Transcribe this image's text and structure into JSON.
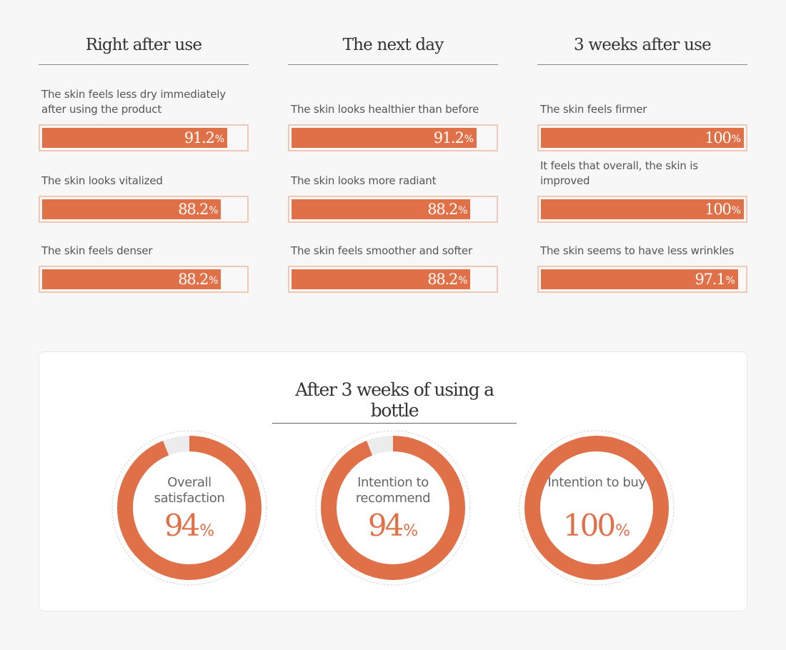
{
  "colors": {
    "accent": "#e07048",
    "track": "#ececec",
    "bar_border": "#f1c8b5"
  },
  "percent_sign": "%",
  "chart_data": [
    {
      "type": "bar",
      "title": "Right after use",
      "categories": [
        "The skin feels less dry immediately after using the product",
        "The skin looks vitalized",
        "The skin feels denser"
      ],
      "values": [
        91.2,
        88.2,
        88.2
      ],
      "value_labels": [
        "91.2",
        "88.2",
        "88.2"
      ],
      "ylim": [
        0,
        100
      ]
    },
    {
      "type": "bar",
      "title": "The next day",
      "categories": [
        "The skin looks healthier than before",
        "The skin looks more radiant",
        "The skin feels smoother and softer"
      ],
      "values": [
        91.2,
        88.2,
        88.2
      ],
      "value_labels": [
        "91.2",
        "88.2",
        "88.2"
      ],
      "ylim": [
        0,
        100
      ]
    },
    {
      "type": "bar",
      "title": "3 weeks after use",
      "categories": [
        "The skin feels firmer",
        "It feels that overall, the skin is improved",
        "The skin seems to have less wrinkles"
      ],
      "values": [
        100,
        100,
        97.1
      ],
      "value_labels": [
        "100",
        "100",
        "97.1"
      ],
      "ylim": [
        0,
        100
      ]
    },
    {
      "type": "pie",
      "title": "After 3 weeks of using a bottle",
      "categories": [
        "Overall satisfaction",
        "Intention to recommend",
        "Intention to buy"
      ],
      "values": [
        94,
        94,
        100
      ],
      "value_labels": [
        "94",
        "94",
        "100"
      ]
    }
  ]
}
